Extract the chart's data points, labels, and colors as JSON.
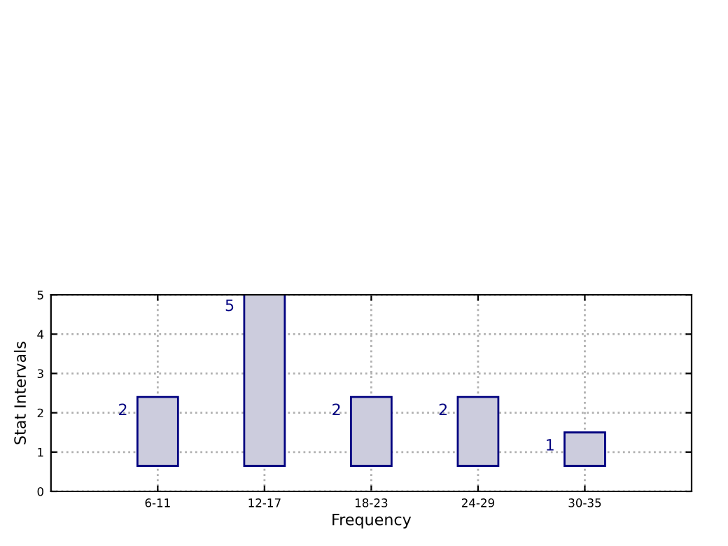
{
  "chart_data": {
    "type": "bar",
    "xlabel": "Frequency",
    "ylabel": "Stat Intervals",
    "categories": [
      "6-11",
      "12-17",
      "18-23",
      "24-29",
      "30-35"
    ],
    "base": [
      0.65,
      0.65,
      0.65,
      0.65,
      0.65
    ],
    "values": [
      1.75,
      4.4,
      1.75,
      1.75,
      0.85
    ],
    "color": "#ccccdd",
    "ylim": [
      0,
      5
    ],
    "yticks": [
      0,
      1,
      2,
      3,
      4,
      5
    ],
    "annotations": [
      "2",
      "5",
      "2",
      "2",
      "1"
    ],
    "grid": true
  }
}
